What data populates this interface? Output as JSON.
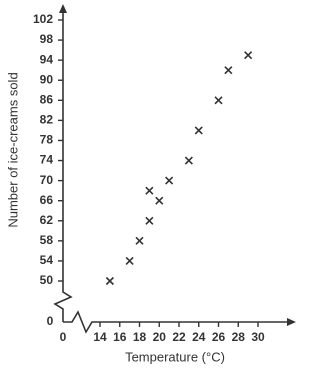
{
  "chart_data": {
    "type": "scatter",
    "x_label": "Temperature (°C)",
    "y_label": "Number of ice-creams sold",
    "x": [
      15,
      17,
      18,
      19,
      19,
      20,
      21,
      23,
      24,
      26,
      27,
      29
    ],
    "series": [
      {
        "color": "#333333",
        "values": [
          50,
          54,
          58,
          62,
          68,
          66,
          70,
          74,
          80,
          86,
          92,
          95
        ]
      }
    ],
    "xlim": [
      14,
      30
    ],
    "xticks": [
      14,
      16,
      18,
      20,
      22,
      24,
      26,
      28,
      30
    ],
    "ylim": [
      50,
      102
    ],
    "yticks": [
      50,
      54,
      58,
      62,
      66,
      70,
      74,
      78,
      82,
      86,
      90,
      94,
      98,
      102
    ],
    "x_origin": 0,
    "y_origin": 0
  }
}
